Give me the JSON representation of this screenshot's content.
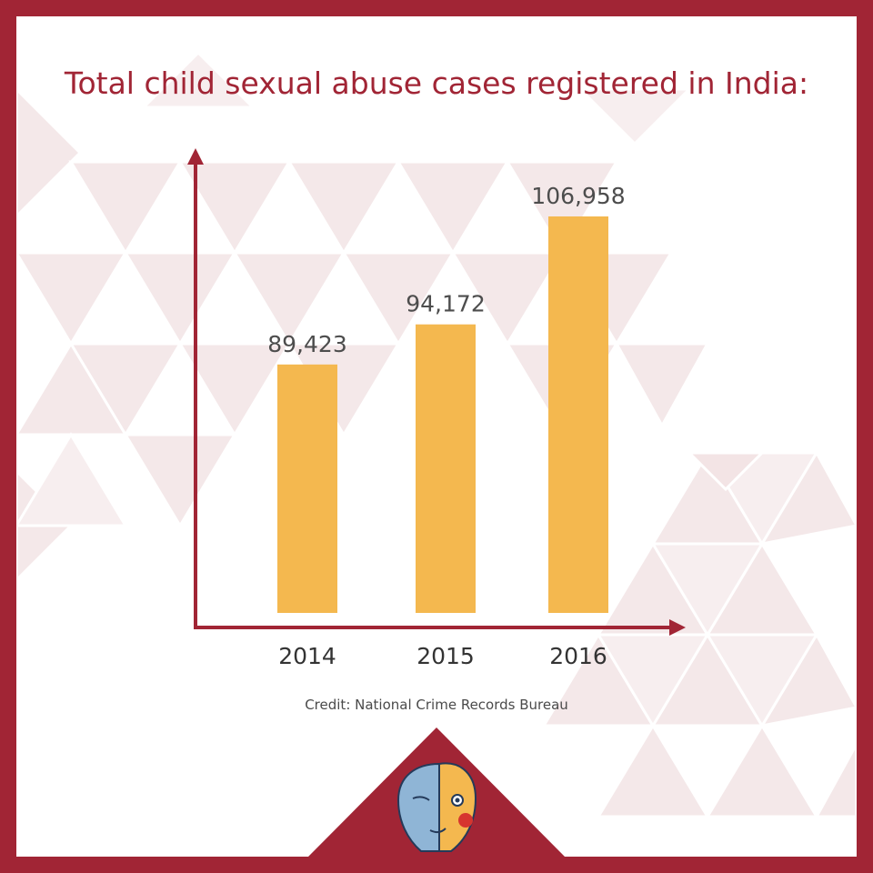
{
  "title": "Total child sexual abuse cases registered in India:",
  "credit": "Credit: National Crime Records Bureau",
  "colors": {
    "frame": "#a12535",
    "bar": "#f4b84f",
    "axis": "#a12535",
    "pattern": "#f3e5e6"
  },
  "chart_data": {
    "type": "bar",
    "title": "Total child sexual abuse cases registered in India:",
    "categories": [
      "2014",
      "2015",
      "2016"
    ],
    "values": [
      89423,
      94172,
      106958
    ],
    "value_labels": [
      "89,423",
      "94,172",
      "106,958"
    ],
    "xlabel": "",
    "ylabel": "",
    "grid": false,
    "legend": "none",
    "y_axis_ticks": false
  },
  "logo": {
    "icon": "two-faced-mask-icon"
  }
}
